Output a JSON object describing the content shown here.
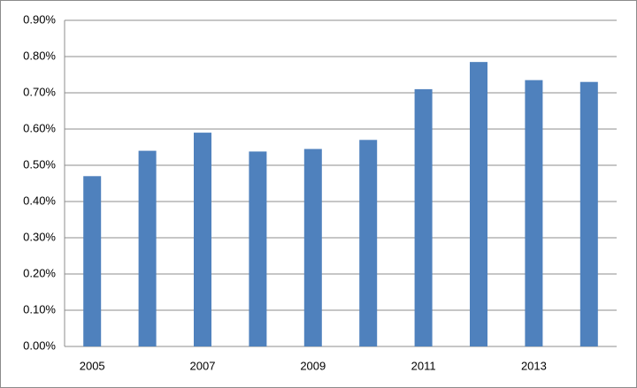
{
  "chart_data": {
    "type": "bar",
    "categories": [
      "2005",
      null,
      "2007",
      null,
      "2009",
      null,
      "2011",
      null,
      "2013",
      null
    ],
    "values": [
      0.47,
      0.54,
      0.59,
      0.538,
      0.545,
      0.57,
      0.71,
      0.785,
      0.735,
      0.73
    ],
    "color": "#4f81bd",
    "ylim": [
      0,
      0.9
    ],
    "yticks": [
      {
        "value": 0,
        "label": "0.00%"
      },
      {
        "value": 0.1,
        "label": "0.10%"
      },
      {
        "value": 0.2,
        "label": "0.20%"
      },
      {
        "value": 0.3,
        "label": "0.30%"
      },
      {
        "value": 0.4,
        "label": "0.40%"
      },
      {
        "value": 0.5,
        "label": "0.50%"
      },
      {
        "value": 0.6,
        "label": "0.60%"
      },
      {
        "value": 0.7,
        "label": "0.70%"
      },
      {
        "value": 0.8,
        "label": "0.80%"
      },
      {
        "value": 0.9,
        "label": "0.90%"
      }
    ],
    "grid": true
  }
}
